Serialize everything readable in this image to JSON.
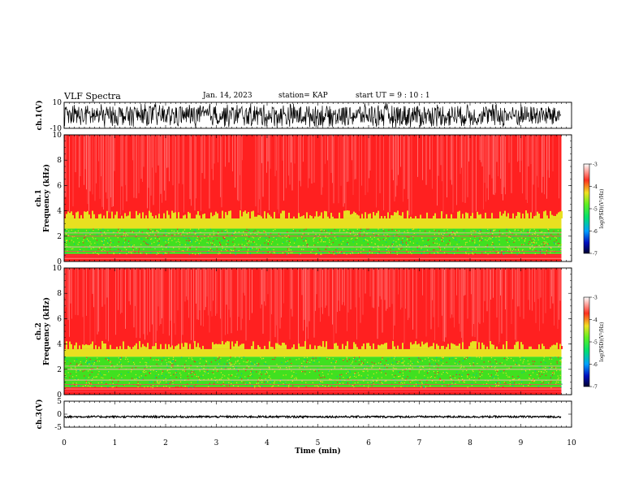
{
  "header": {
    "title": "VLF Spectra",
    "date": "Jan. 14, 2023",
    "station": "station= KAP",
    "start_ut": "start  UT =   9 : 10 : 1"
  },
  "chart_data": [
    {
      "type": "line",
      "panel": "ch1-waveform",
      "ylabel": "ch.1(V)",
      "ylim": [
        -10,
        10
      ],
      "yticks": [
        10,
        -10
      ],
      "xlim": [
        0,
        10
      ],
      "description_level": "noisy waveform saturating near ±10 V"
    },
    {
      "type": "heatmap",
      "panel": "ch1-spectrogram",
      "ylabel": "ch.1\nFrequency (kHz)",
      "ylabel_top": "ch.1",
      "ylabel_bottom": "Frequency (kHz)",
      "ylim": [
        0,
        10
      ],
      "yticks": [
        0,
        2,
        4,
        6,
        8,
        10
      ],
      "xlim": [
        0,
        10
      ],
      "data_end_min": 9.8,
      "colorbar": {
        "label": "log(PSD)(V²/Hz)",
        "range": [
          -7,
          -3
        ],
        "ticks": [
          -3,
          -4,
          -5,
          -6,
          -7
        ]
      },
      "bands": [
        {
          "fmin": 0.0,
          "fmax": 0.6,
          "level": -3.8
        },
        {
          "fmin": 0.6,
          "fmax": 2.6,
          "level": -5.0
        },
        {
          "fmin": 2.6,
          "fmax": 3.4,
          "level": -4.2
        },
        {
          "fmin": 3.4,
          "fmax": 10.0,
          "level": -3.6
        }
      ]
    },
    {
      "type": "heatmap",
      "panel": "ch2-spectrogram",
      "ylabel": "ch.2\nFrequency (kHz)",
      "ylabel_top": "ch.2",
      "ylabel_bottom": "Frequency (kHz)",
      "ylim": [
        0,
        10
      ],
      "yticks": [
        0,
        2,
        4,
        6,
        8,
        10
      ],
      "xlim": [
        0,
        10
      ],
      "data_end_min": 9.8,
      "colorbar": {
        "label": "log(PSD)(V²/Hz)",
        "range": [
          -7,
          -3
        ],
        "ticks": [
          -3,
          -4,
          -5,
          -6,
          -7
        ]
      },
      "bands": [
        {
          "fmin": 0.0,
          "fmax": 0.6,
          "level": -3.8
        },
        {
          "fmin": 0.6,
          "fmax": 3.0,
          "level": -5.2
        },
        {
          "fmin": 3.0,
          "fmax": 3.6,
          "level": -4.3
        },
        {
          "fmin": 3.6,
          "fmax": 10.0,
          "level": -3.6
        }
      ]
    },
    {
      "type": "line",
      "panel": "ch3-waveform",
      "ylabel": "ch.3(V)",
      "ylim": [
        -5,
        5
      ],
      "yticks": [
        5,
        0,
        -5
      ],
      "xlim": [
        0,
        10
      ],
      "xlabel": "Time (min)",
      "xticks": [
        0,
        1,
        2,
        3,
        4,
        5,
        6,
        7,
        8,
        9,
        10
      ],
      "mean_value": -1.0,
      "spread": 0.35
    }
  ],
  "colors": {
    "red": "#ff2020",
    "yellow": "#e8e020",
    "green": "#40e020",
    "blue": "#0010c0",
    "navy": "#000040",
    "axis": "#000000"
  }
}
